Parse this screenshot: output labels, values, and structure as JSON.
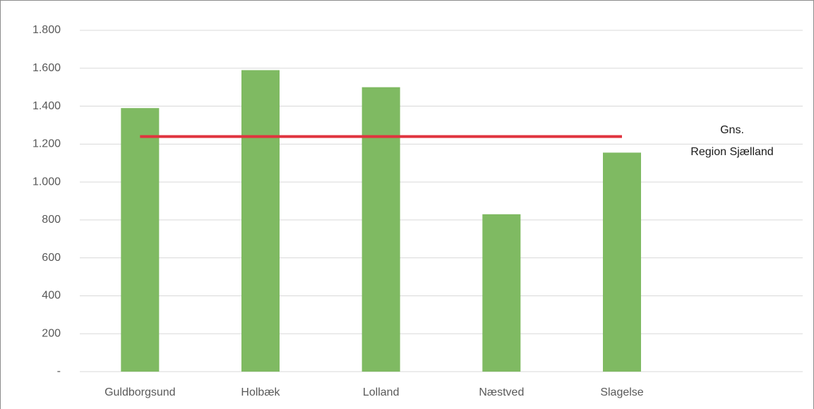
{
  "chart_data": {
    "type": "bar",
    "categories": [
      "Guldborgsund",
      "Holbæk",
      "Lolland",
      "Næstved",
      "Slagelse",
      null
    ],
    "values": [
      1390,
      1590,
      1500,
      830,
      1155,
      null
    ],
    "color": "#7fba62",
    "ylim": [
      0,
      1800
    ],
    "yticks": [
      {
        "value": 0,
        "label": "-"
      },
      200,
      400,
      600,
      800,
      {
        "value": 1000,
        "label": "1.000"
      },
      {
        "value": 1200,
        "label": "1.200"
      },
      {
        "value": 1400,
        "label": "1.400"
      },
      {
        "value": 1600,
        "label": "1.600"
      },
      {
        "value": 1800,
        "label": "1.800"
      }
    ],
    "grid": true,
    "reference_line": {
      "value": 1240,
      "color": "#e0343f",
      "label": [
        "Gns.",
        "Region Sjælland"
      ]
    }
  }
}
